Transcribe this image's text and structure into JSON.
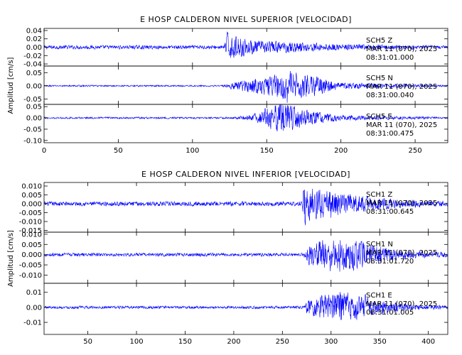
{
  "chart_data": [
    {
      "type": "line",
      "title": "E HOSP CALDERON NIVEL SUPERIOR [VELOCIDAD]",
      "xlabel": "",
      "ylabel": "Amplitud [cm/s]",
      "xlim": [
        0,
        272
      ],
      "x_ticks": [
        "0",
        "50",
        "100",
        "150",
        "200",
        "250"
      ],
      "line_color": "#0000ff",
      "grid": false,
      "channels": [
        {
          "station": "SCH5",
          "component": "Z",
          "date": "MAR 11 (070), 2025",
          "time": "08:31:01.000",
          "ylim": [
            -0.045,
            0.045
          ],
          "y_ticks": [
            "-0.04",
            "-0.02",
            "0.00",
            "0.02",
            "0.04"
          ],
          "noise_level": 0.0045,
          "bursts": [
            {
              "t": 124,
              "amp": 0.044
            },
            {
              "t": 130,
              "amp": 0.018
            },
            {
              "t": 160,
              "amp": 0.013
            }
          ],
          "envelope": [
            [
              0,
              0.0045
            ],
            [
              122,
              0.0045
            ],
            [
              124,
              0.03
            ],
            [
              140,
              0.016
            ],
            [
              165,
              0.013
            ],
            [
              200,
              0.007
            ],
            [
              272,
              0.004
            ]
          ]
        },
        {
          "station": "SCH5",
          "component": "N",
          "date": "MAR 11 (070), 2025",
          "time": "08:31:00.040",
          "ylim": [
            -0.07,
            0.075
          ],
          "y_ticks": [
            "-0.05",
            "0.00",
            "0.05"
          ],
          "noise_level": 0.003,
          "bursts": [
            {
              "t": 164,
              "amp": 0.07
            },
            {
              "t": 175,
              "amp": 0.055
            },
            {
              "t": 143,
              "amp": 0.038
            }
          ],
          "envelope": [
            [
              0,
              0.003
            ],
            [
              120,
              0.003
            ],
            [
              130,
              0.018
            ],
            [
              150,
              0.035
            ],
            [
              164,
              0.055
            ],
            [
              178,
              0.045
            ],
            [
              200,
              0.012
            ],
            [
              272,
              0.003
            ]
          ]
        },
        {
          "station": "SCH5",
          "component": "E",
          "date": "MAR 11 (070), 2025",
          "time": "08:31:00.475",
          "ylim": [
            -0.11,
            0.06
          ],
          "y_ticks": [
            "-0.10",
            "-0.05",
            "0.00",
            "0.05"
          ],
          "noise_level": 0.004,
          "bursts": [
            {
              "t": 160,
              "amp": 0.1
            },
            {
              "t": 155,
              "amp": 0.05
            },
            {
              "t": 180,
              "amp": 0.03
            }
          ],
          "envelope": [
            [
              0,
              0.004
            ],
            [
              128,
              0.004
            ],
            [
              140,
              0.015
            ],
            [
              160,
              0.07
            ],
            [
              175,
              0.035
            ],
            [
              200,
              0.012
            ],
            [
              272,
              0.004
            ]
          ]
        }
      ]
    },
    {
      "type": "line",
      "title": "E HOSP CALDERON NIVEL INFERIOR [VELOCIDAD]",
      "xlabel": "",
      "ylabel": "Amplitud [cm/s]",
      "xlim": [
        5,
        420
      ],
      "x_ticks": [
        "50",
        "100",
        "150",
        "200",
        "250",
        "300",
        "350",
        "400"
      ],
      "line_color": "#0000ff",
      "grid": false,
      "channels": [
        {
          "station": "SCH1",
          "component": "Z",
          "date": "MAR 11 (070), 2025",
          "time": "08:31:00.645",
          "ylim": [
            -0.016,
            0.012
          ],
          "y_ticks": [
            "-0.015",
            "-0.010",
            "-0.005",
            "0.000",
            "0.005",
            "0.010"
          ],
          "noise_level": 0.0012,
          "bursts": [
            {
              "t": 273,
              "amp": 0.015
            },
            {
              "t": 300,
              "amp": 0.009
            },
            {
              "t": 320,
              "amp": 0.008
            }
          ],
          "envelope": [
            [
              5,
              0.0012
            ],
            [
              271,
              0.0012
            ],
            [
              273,
              0.01
            ],
            [
              300,
              0.007
            ],
            [
              340,
              0.004
            ],
            [
              380,
              0.002
            ],
            [
              420,
              0.0015
            ]
          ]
        },
        {
          "station": "SCH1",
          "component": "N",
          "date": "MAR 11 (070), 2025",
          "time": "08:31:01.720",
          "ylim": [
            -0.014,
            0.011
          ],
          "y_ticks": [
            "-0.010",
            "-0.005",
            "0.000",
            "0.005",
            "0.010"
          ],
          "noise_level": 0.0008,
          "bursts": [
            {
              "t": 310,
              "amp": 0.012
            },
            {
              "t": 300,
              "amp": 0.009
            },
            {
              "t": 330,
              "amp": 0.007
            }
          ],
          "envelope": [
            [
              5,
              0.0008
            ],
            [
              272,
              0.0008
            ],
            [
              276,
              0.005
            ],
            [
              310,
              0.009
            ],
            [
              335,
              0.006
            ],
            [
              380,
              0.002
            ],
            [
              420,
              0.0012
            ]
          ]
        },
        {
          "station": "SCH1",
          "component": "E",
          "date": "MAR 11 (070), 2025",
          "time": "08:31:01.005",
          "ylim": [
            -0.018,
            0.016
          ],
          "y_ticks": [
            "-0.01",
            "0.00",
            "0.01"
          ],
          "noise_level": 0.0009,
          "bursts": [
            {
              "t": 312,
              "amp": 0.016
            },
            {
              "t": 300,
              "amp": 0.01
            },
            {
              "t": 335,
              "amp": 0.009
            }
          ],
          "envelope": [
            [
              5,
              0.0009
            ],
            [
              272,
              0.0009
            ],
            [
              276,
              0.005
            ],
            [
              312,
              0.011
            ],
            [
              340,
              0.006
            ],
            [
              380,
              0.002
            ],
            [
              420,
              0.0012
            ]
          ]
        }
      ]
    }
  ]
}
